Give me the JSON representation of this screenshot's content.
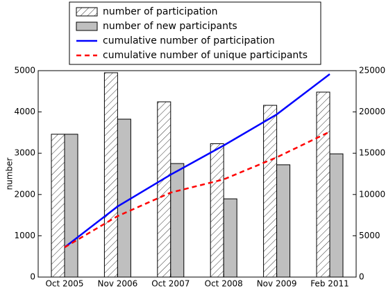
{
  "chart_data": {
    "type": "bar",
    "ylabel": "number",
    "categories": [
      "Oct 2005",
      "Nov 2006",
      "Oct 2007",
      "Oct 2008",
      "Nov 2009",
      "Feb 2011"
    ],
    "series": [
      {
        "name": "number of participation",
        "type": "bar",
        "color": "#ffffff",
        "hatch": true,
        "values": [
          3460,
          4950,
          4245,
          3230,
          4160,
          4480
        ]
      },
      {
        "name": "number of new participants",
        "type": "bar",
        "color": "#bfbfbf",
        "hatch": false,
        "values": [
          3460,
          3825,
          2750,
          1895,
          2720,
          2985
        ]
      },
      {
        "name": "cumulative number of participation",
        "type": "line",
        "color": "#0000ff",
        "dashed": false,
        "axis": "y2",
        "values": [
          3600,
          8550,
          12400,
          15940,
          19700,
          24580
        ]
      },
      {
        "name": "cumulative number of unique participants",
        "type": "line",
        "color": "#ff0000",
        "dashed": true,
        "axis": "y2",
        "values": [
          3600,
          7380,
          10230,
          11830,
          14500,
          17600
        ]
      }
    ],
    "ylim": [
      0,
      5000
    ],
    "yticks": [
      0,
      1000,
      2000,
      3000,
      4000,
      5000
    ],
    "y2lim": [
      0,
      25000
    ],
    "y2ticks": [
      0,
      5000,
      10000,
      15000,
      20000,
      25000
    ],
    "legend": "top",
    "grid": false
  }
}
